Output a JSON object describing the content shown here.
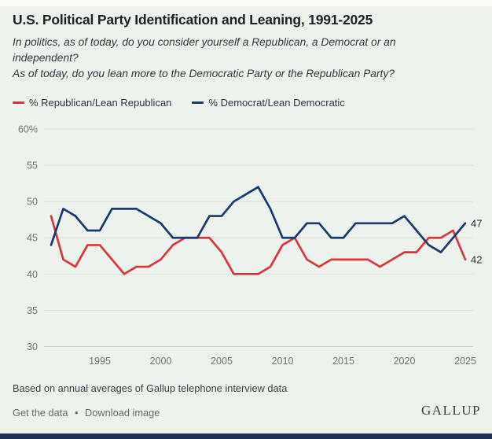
{
  "header": {
    "title": "U.S. Political Party Identification and Leaning, 1991-2025",
    "subtitle_line1": "In politics, as of today, do you consider yourself a Republican, a Democrat or an independent?",
    "subtitle_line2": "As of today, do you lean more to the Democratic Party or the Republican Party?"
  },
  "legend": {
    "republican_label": "% Republican/Lean Republican",
    "democrat_label": "% Democrat/Lean Democratic"
  },
  "colors": {
    "republican": "#d9353f",
    "democrat": "#1a3a6b",
    "background": "#edf2ec",
    "gridline": "#dbe2d8",
    "axis_line": "#c7d0c5",
    "axis_text": "#6d766f",
    "bottom_bar": "#1d3356"
  },
  "chart_data": {
    "type": "line",
    "title": "U.S. Political Party Identification and Leaning, 1991-2025",
    "x": [
      1991,
      1992,
      1993,
      1994,
      1995,
      1996,
      1997,
      1998,
      1999,
      2000,
      2001,
      2002,
      2003,
      2004,
      2005,
      2006,
      2007,
      2008,
      2009,
      2010,
      2011,
      2012,
      2013,
      2014,
      2015,
      2016,
      2017,
      2018,
      2019,
      2020,
      2021,
      2022,
      2023,
      2024,
      2025
    ],
    "series": [
      {
        "name": "% Republican/Lean Republican",
        "color": "#d9353f",
        "values": [
          48,
          42,
          41,
          44,
          44,
          42,
          40,
          41,
          41,
          42,
          44,
          45,
          45,
          45,
          43,
          40,
          40,
          40,
          41,
          44,
          45,
          42,
          41,
          42,
          42,
          42,
          42,
          41,
          42,
          43,
          43,
          45,
          45,
          46,
          42
        ]
      },
      {
        "name": "% Democrat/Lean Democratic",
        "color": "#1a3a6b",
        "values": [
          44,
          49,
          48,
          46,
          46,
          49,
          49,
          49,
          48,
          47,
          45,
          45,
          45,
          48,
          48,
          50,
          51,
          52,
          49,
          45,
          45,
          47,
          47,
          45,
          45,
          47,
          47,
          47,
          47,
          48,
          46,
          44,
          43,
          45,
          47
        ]
      }
    ],
    "ylim": [
      30,
      60
    ],
    "yticks": [
      30,
      35,
      40,
      45,
      50,
      55,
      60
    ],
    "ytick_top_label": "60%",
    "xticks": [
      1995,
      2000,
      2005,
      2010,
      2015,
      2020,
      2025
    ],
    "end_labels": [
      {
        "text": "47",
        "series_index": 1
      },
      {
        "text": "42",
        "series_index": 0
      }
    ],
    "grid": true,
    "legend_position": "top"
  },
  "footer": {
    "source_note": "Based on annual averages of Gallup telephone interview data",
    "get_data_label": "Get the data",
    "separator": "•",
    "download_label": "Download image",
    "logo": "GALLUP"
  }
}
